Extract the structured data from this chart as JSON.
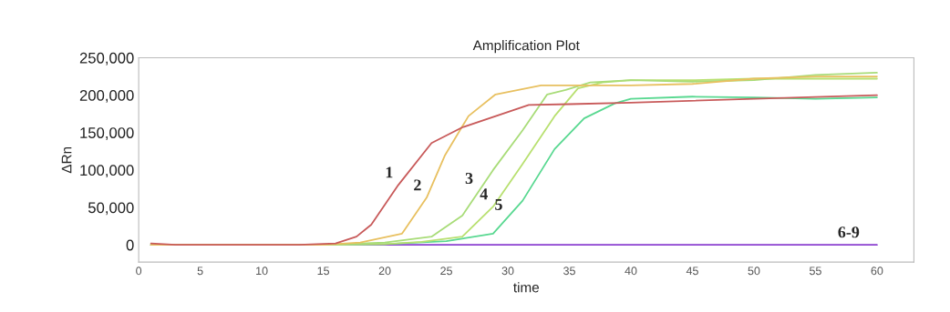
{
  "chart_data": {
    "type": "line",
    "title": "Amplification Plot",
    "xlabel": "time",
    "ylabel": "ΔRn",
    "xlim": [
      0,
      63
    ],
    "xticks": [
      0,
      5,
      10,
      15,
      20,
      25,
      30,
      35,
      40,
      45,
      50,
      55,
      60
    ],
    "ylim": [
      -23000,
      250000
    ],
    "yticks": [
      {
        "value": 0,
        "label": "0"
      },
      {
        "value": 50000,
        "label": "50,000"
      },
      {
        "value": 100000,
        "label": "100,000"
      },
      {
        "value": 150000,
        "label": "150,000"
      },
      {
        "value": 200000,
        "label": "200,000"
      },
      {
        "value": 250000,
        "label": "250,000"
      }
    ],
    "grid": false,
    "marker": "none",
    "line_style": "solid",
    "series": [
      {
        "color": "#8a3fd0",
        "x": [
          1,
          10,
          20,
          30,
          40,
          50,
          60
        ],
        "values": [
          0,
          0,
          0,
          0,
          0,
          0,
          0
        ]
      },
      {
        "color": "#58d890",
        "x": [
          1,
          15,
          20,
          25,
          28.8,
          31.2,
          33.8,
          36.2,
          38.7,
          40,
          45,
          50,
          55,
          60
        ],
        "values": [
          0,
          0,
          1000,
          5000,
          15000,
          59000,
          128000,
          169000,
          189000,
          195000,
          198000,
          197000,
          195000,
          197000
        ]
      },
      {
        "color": "#b8e070",
        "x": [
          1,
          15,
          20,
          23,
          26.3,
          28.8,
          31.2,
          33.8,
          35.7,
          37.7,
          40,
          45,
          50,
          55,
          60
        ],
        "values": [
          0,
          0,
          1000,
          4000,
          11000,
          51000,
          108000,
          172000,
          209000,
          217000,
          220000,
          220000,
          222000,
          222000,
          222000
        ]
      },
      {
        "color": "#a8dc78",
        "x": [
          1,
          15,
          20,
          23.8,
          26.3,
          28.8,
          31.2,
          33.2,
          34.7,
          36.7,
          40,
          45,
          50,
          55,
          60
        ],
        "values": [
          0,
          0,
          3000,
          11000,
          39000,
          100000,
          153000,
          201000,
          207000,
          217000,
          220000,
          218000,
          220000,
          227000,
          230000
        ]
      },
      {
        "color": "#e8c060",
        "x": [
          1,
          15,
          18,
          21.4,
          23.4,
          24.9,
          26.8,
          29.0,
          32.7,
          40,
          45,
          50,
          55,
          60
        ],
        "values": [
          0,
          0,
          3000,
          15000,
          63000,
          120000,
          172000,
          201000,
          213000,
          213000,
          215000,
          222000,
          225000,
          225000
        ]
      },
      {
        "color": "#c85a5a",
        "x": [
          1,
          3,
          13,
          16,
          17.7,
          18.9,
          21.1,
          23.8,
          26.3,
          31.7,
          35,
          40,
          50,
          60
        ],
        "values": [
          2000,
          0,
          0,
          2000,
          11000,
          27000,
          80000,
          136000,
          157000,
          187000,
          188000,
          190000,
          195000,
          200000
        ]
      }
    ],
    "annotations": [
      {
        "text": "1",
        "x": 21.1,
        "y": 80000
      },
      {
        "text": "2",
        "x": 23.4,
        "y": 63000
      },
      {
        "text": "3",
        "x": 27.6,
        "y": 72000
      },
      {
        "text": "4",
        "x": 28.8,
        "y": 51000
      },
      {
        "text": "5",
        "x": 30.0,
        "y": 37000
      },
      {
        "text": "6-9",
        "x": 59,
        "y": 0
      }
    ]
  }
}
